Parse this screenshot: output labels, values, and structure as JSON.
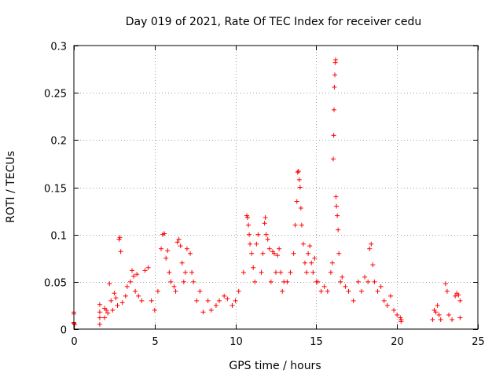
{
  "chart_data": {
    "type": "scatter",
    "title": "Day 019 of 2021, Rate Of TEC Index for receiver cedu",
    "xlabel": "GPS time / hours",
    "ylabel": "ROTI / TECUs",
    "xlim": [
      0,
      25
    ],
    "ylim": [
      0,
      0.3
    ],
    "xticks": [
      0,
      5,
      10,
      15,
      20,
      25
    ],
    "xtick_labels": [
      "0",
      "5",
      "10",
      "15",
      "20",
      "25"
    ],
    "yticks": [
      0,
      0.05,
      0.1,
      0.15,
      0.2,
      0.25,
      0.3
    ],
    "ytick_labels": [
      "0",
      "0.05",
      "0.1",
      "0.15",
      "0.2",
      "0.25",
      "0.3"
    ],
    "grid": true,
    "marker": "+",
    "marker_color": "#ff0000",
    "series": [
      {
        "name": "ROTI",
        "points": [
          [
            0.0,
            0.006
          ],
          [
            0.0,
            0.007
          ],
          [
            0.0,
            0.016
          ],
          [
            0.0,
            0.018
          ],
          [
            0.05,
            0.005
          ],
          [
            1.6,
            0.005
          ],
          [
            1.6,
            0.012
          ],
          [
            1.6,
            0.018
          ],
          [
            1.6,
            0.026
          ],
          [
            1.9,
            0.022
          ],
          [
            1.9,
            0.012
          ],
          [
            2.0,
            0.02
          ],
          [
            2.1,
            0.017
          ],
          [
            2.2,
            0.048
          ],
          [
            2.3,
            0.03
          ],
          [
            2.4,
            0.02
          ],
          [
            2.5,
            0.038
          ],
          [
            2.6,
            0.033
          ],
          [
            2.7,
            0.025
          ],
          [
            2.8,
            0.095
          ],
          [
            2.85,
            0.097
          ],
          [
            2.9,
            0.082
          ],
          [
            3.0,
            0.028
          ],
          [
            3.2,
            0.035
          ],
          [
            3.3,
            0.045
          ],
          [
            3.5,
            0.05
          ],
          [
            3.6,
            0.062
          ],
          [
            3.7,
            0.056
          ],
          [
            3.8,
            0.04
          ],
          [
            3.9,
            0.058
          ],
          [
            4.0,
            0.035
          ],
          [
            4.2,
            0.03
          ],
          [
            4.4,
            0.062
          ],
          [
            4.6,
            0.065
          ],
          [
            4.8,
            0.03
          ],
          [
            5.0,
            0.02
          ],
          [
            5.2,
            0.04
          ],
          [
            5.4,
            0.085
          ],
          [
            5.5,
            0.1
          ],
          [
            5.6,
            0.101
          ],
          [
            5.7,
            0.075
          ],
          [
            5.8,
            0.083
          ],
          [
            5.9,
            0.06
          ],
          [
            6.0,
            0.05
          ],
          [
            6.2,
            0.045
          ],
          [
            6.3,
            0.04
          ],
          [
            6.4,
            0.092
          ],
          [
            6.5,
            0.095
          ],
          [
            6.6,
            0.088
          ],
          [
            6.7,
            0.07
          ],
          [
            6.8,
            0.05
          ],
          [
            6.9,
            0.06
          ],
          [
            7.0,
            0.085
          ],
          [
            7.2,
            0.08
          ],
          [
            7.3,
            0.06
          ],
          [
            7.4,
            0.05
          ],
          [
            7.6,
            0.03
          ],
          [
            7.8,
            0.04
          ],
          [
            8.0,
            0.018
          ],
          [
            8.3,
            0.03
          ],
          [
            8.5,
            0.02
          ],
          [
            8.8,
            0.025
          ],
          [
            9.0,
            0.03
          ],
          [
            9.3,
            0.035
          ],
          [
            9.5,
            0.032
          ],
          [
            9.8,
            0.025
          ],
          [
            10.0,
            0.03
          ],
          [
            10.2,
            0.04
          ],
          [
            10.5,
            0.06
          ],
          [
            10.7,
            0.12
          ],
          [
            10.75,
            0.118
          ],
          [
            10.8,
            0.11
          ],
          [
            10.85,
            0.1
          ],
          [
            10.9,
            0.09
          ],
          [
            11.0,
            0.08
          ],
          [
            11.1,
            0.065
          ],
          [
            11.2,
            0.05
          ],
          [
            11.3,
            0.09
          ],
          [
            11.4,
            0.1
          ],
          [
            11.6,
            0.06
          ],
          [
            11.7,
            0.08
          ],
          [
            11.8,
            0.112
          ],
          [
            11.85,
            0.118
          ],
          [
            11.9,
            0.1
          ],
          [
            12.0,
            0.095
          ],
          [
            12.1,
            0.085
          ],
          [
            12.2,
            0.05
          ],
          [
            12.3,
            0.082
          ],
          [
            12.4,
            0.08
          ],
          [
            12.5,
            0.06
          ],
          [
            12.6,
            0.078
          ],
          [
            12.7,
            0.085
          ],
          [
            12.8,
            0.06
          ],
          [
            12.9,
            0.04
          ],
          [
            13.0,
            0.05
          ],
          [
            13.2,
            0.05
          ],
          [
            13.4,
            0.06
          ],
          [
            13.6,
            0.08
          ],
          [
            13.7,
            0.11
          ],
          [
            13.8,
            0.135
          ],
          [
            13.85,
            0.166
          ],
          [
            13.9,
            0.167
          ],
          [
            13.95,
            0.158
          ],
          [
            14.0,
            0.15
          ],
          [
            14.05,
            0.128
          ],
          [
            14.1,
            0.11
          ],
          [
            14.2,
            0.09
          ],
          [
            14.3,
            0.07
          ],
          [
            14.4,
            0.06
          ],
          [
            14.5,
            0.08
          ],
          [
            14.6,
            0.088
          ],
          [
            14.7,
            0.07
          ],
          [
            14.8,
            0.06
          ],
          [
            14.9,
            0.075
          ],
          [
            15.0,
            0.05
          ],
          [
            15.1,
            0.05
          ],
          [
            15.3,
            0.04
          ],
          [
            15.5,
            0.045
          ],
          [
            15.7,
            0.04
          ],
          [
            15.9,
            0.06
          ],
          [
            16.0,
            0.07
          ],
          [
            16.05,
            0.18
          ],
          [
            16.08,
            0.205
          ],
          [
            16.1,
            0.232
          ],
          [
            16.12,
            0.256
          ],
          [
            16.15,
            0.269
          ],
          [
            16.18,
            0.282
          ],
          [
            16.2,
            0.285
          ],
          [
            16.22,
            0.14
          ],
          [
            16.25,
            0.13
          ],
          [
            16.3,
            0.12
          ],
          [
            16.35,
            0.105
          ],
          [
            16.4,
            0.08
          ],
          [
            16.5,
            0.05
          ],
          [
            16.6,
            0.055
          ],
          [
            16.8,
            0.045
          ],
          [
            17.0,
            0.04
          ],
          [
            17.3,
            0.03
          ],
          [
            17.6,
            0.05
          ],
          [
            17.8,
            0.04
          ],
          [
            18.0,
            0.055
          ],
          [
            18.2,
            0.05
          ],
          [
            18.3,
            0.085
          ],
          [
            18.4,
            0.09
          ],
          [
            18.5,
            0.068
          ],
          [
            18.6,
            0.05
          ],
          [
            18.8,
            0.04
          ],
          [
            19.0,
            0.045
          ],
          [
            19.2,
            0.03
          ],
          [
            19.4,
            0.025
          ],
          [
            19.6,
            0.035
          ],
          [
            19.8,
            0.02
          ],
          [
            20.0,
            0.015
          ],
          [
            20.2,
            0.012
          ],
          [
            20.25,
            0.01
          ],
          [
            20.25,
            0.008
          ],
          [
            22.2,
            0.01
          ],
          [
            22.3,
            0.02
          ],
          [
            22.4,
            0.018
          ],
          [
            22.5,
            0.025
          ],
          [
            22.6,
            0.015
          ],
          [
            22.7,
            0.01
          ],
          [
            23.0,
            0.048
          ],
          [
            23.1,
            0.04
          ],
          [
            23.2,
            0.015
          ],
          [
            23.4,
            0.01
          ],
          [
            23.6,
            0.035
          ],
          [
            23.7,
            0.038
          ],
          [
            23.8,
            0.036
          ],
          [
            23.9,
            0.03
          ],
          [
            23.9,
            0.012
          ]
        ]
      }
    ]
  }
}
